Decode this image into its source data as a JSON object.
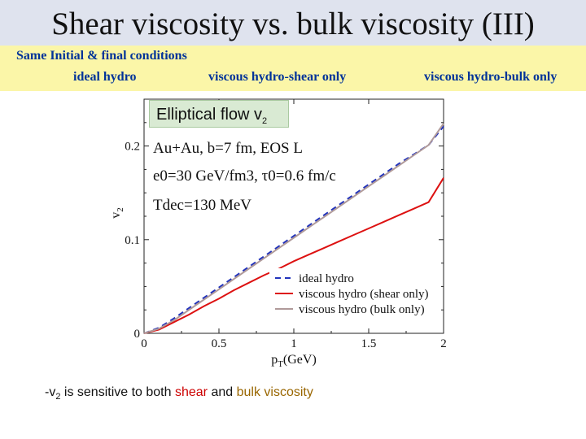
{
  "slide": {
    "title": "Shear viscosity vs. bulk viscosity (III)",
    "subtitle": "Same Initial & final conditions",
    "legend_top": [
      {
        "label": "ideal hydro",
        "color": "#2233bb",
        "dash": true
      },
      {
        "label": "viscous hydro-shear only",
        "color": "#cc0000",
        "dash": false
      },
      {
        "label": "viscous hydro-bulk only",
        "color": "#996600",
        "dash": false
      }
    ],
    "flow_label": "Elliptical flow v",
    "flow_sub": "2",
    "note_prefix": "-v",
    "note_sub": "2",
    "note_mid": " is sensitive to both ",
    "note_shear": "shear",
    "note_and": " and ",
    "note_bulk": "bulk viscosity",
    "colors": {
      "shear": "#cc0000",
      "bulk": "#996600"
    }
  },
  "chart_data": {
    "type": "line",
    "xlabel_main": "p",
    "xlabel_sub": "T",
    "xlabel_unit": "(GeV)",
    "ylabel_main": "v",
    "ylabel_sub": "2",
    "xlim": [
      0,
      2
    ],
    "ylim": [
      0,
      0.25
    ],
    "x_ticks": [
      0,
      0.5,
      1,
      1.5,
      2
    ],
    "x_tick_labels": [
      "0",
      "0.5",
      "1",
      "1.5",
      "2"
    ],
    "y_ticks": [
      0,
      0.1,
      0.2
    ],
    "y_tick_labels": [
      "0",
      "0.1",
      "0.2"
    ],
    "annotations": [
      "Au+Au, b=7 fm, EOS L",
      "e0=30 GeV/fm3, τ0=0.6 fm/c",
      "Tdec=130 MeV"
    ],
    "x": [
      0,
      0.1,
      0.2,
      0.3,
      0.4,
      0.5,
      0.6,
      0.7,
      0.8,
      0.9,
      1.0,
      1.1,
      1.2,
      1.3,
      1.4,
      1.5,
      1.6,
      1.7,
      1.8,
      1.9,
      2.0
    ],
    "series": [
      {
        "name": "ideal hydro",
        "color": "#2233bb",
        "dash": "7,5",
        "values": [
          0.0,
          0.006,
          0.016,
          0.027,
          0.038,
          0.049,
          0.06,
          0.071,
          0.082,
          0.093,
          0.104,
          0.115,
          0.126,
          0.137,
          0.148,
          0.159,
          0.17,
          0.181,
          0.191,
          0.201,
          0.221
        ]
      },
      {
        "name": "viscous hydro (shear only)",
        "color": "#dd1111",
        "dash": "",
        "values": [
          0.0,
          0.004,
          0.012,
          0.02,
          0.029,
          0.037,
          0.046,
          0.054,
          0.062,
          0.069,
          0.077,
          0.084,
          0.091,
          0.098,
          0.105,
          0.112,
          0.119,
          0.126,
          0.133,
          0.14,
          0.166
        ]
      },
      {
        "name": "viscous hydro (bulk only)",
        "color": "#b09a9a",
        "dash": "",
        "values": [
          0.0,
          0.005,
          0.014,
          0.025,
          0.036,
          0.047,
          0.058,
          0.069,
          0.08,
          0.091,
          0.102,
          0.113,
          0.124,
          0.135,
          0.146,
          0.157,
          0.168,
          0.179,
          0.19,
          0.201,
          0.224
        ]
      }
    ]
  }
}
